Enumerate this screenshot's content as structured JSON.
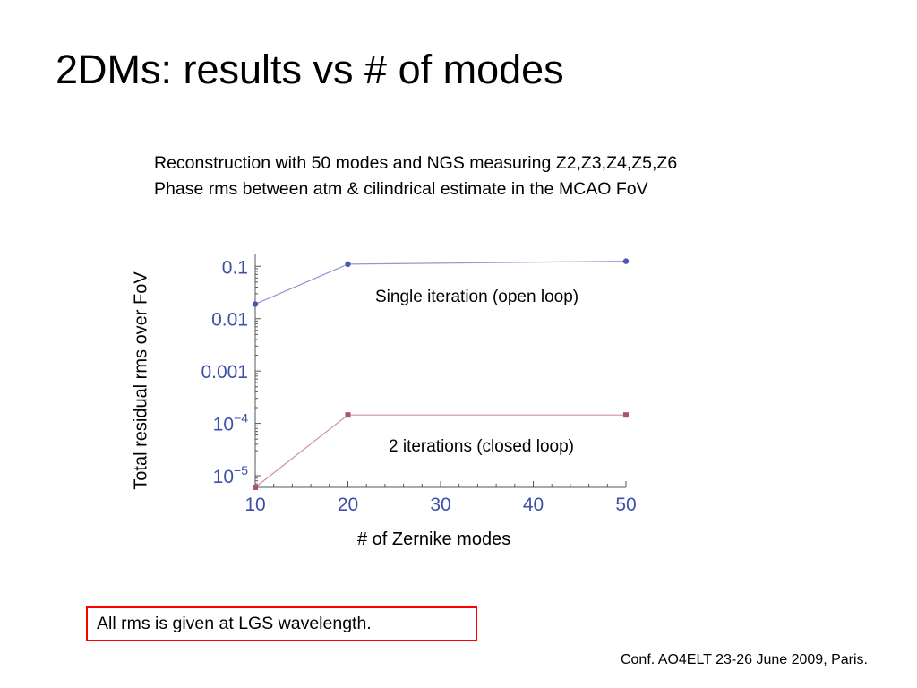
{
  "slide": {
    "title": "2DMs: results vs # of modes",
    "subtitle_line1": "Reconstruction with 50 modes and NGS measuring Z2,Z3,Z4,Z5,Z6",
    "subtitle_line2": "Phase rms between  atm  &  cilindrical estimate in the MCAO FoV",
    "note": "All rms is given at LGS wavelength.",
    "footer": "Conf. AO4ELT 23-26 June 2009, Paris."
  },
  "colors": {
    "axis_tick_text": "#3e4fa8",
    "series1": "#4a56b0",
    "series1_line": "#8f97d4",
    "series2": "#a8507e",
    "series2_line": "#cf8fa8",
    "note_border": "#ff0000"
  },
  "chart_data": {
    "type": "line",
    "xlabel": "# of Zernike modes",
    "ylabel": "Total residual rms over FoV",
    "yscale": "log",
    "xlim": [
      10,
      50
    ],
    "ylim": [
      6e-06,
      0.15
    ],
    "x_ticks": [
      10,
      20,
      30,
      40,
      50
    ],
    "x_tick_labels": [
      "10",
      "20",
      "30",
      "40",
      "50"
    ],
    "y_ticks": [
      {
        "value": 0.1,
        "base": "0.1",
        "exp": ""
      },
      {
        "value": 0.01,
        "base": "0.01",
        "exp": ""
      },
      {
        "value": 0.001,
        "base": "0.001",
        "exp": ""
      },
      {
        "value": 0.0001,
        "base": "10",
        "exp": "−4"
      },
      {
        "value": 1e-05,
        "base": "10",
        "exp": "−5"
      }
    ],
    "grid": false,
    "series": [
      {
        "name": "Single iteration (open loop)",
        "marker": "circle",
        "x": [
          10,
          20,
          50
        ],
        "y": [
          0.019,
          0.11,
          0.125
        ]
      },
      {
        "name": "2 iterations (closed loop)",
        "marker": "square",
        "x": [
          10,
          20,
          50
        ],
        "y": [
          6e-06,
          0.000145,
          0.000145
        ]
      }
    ]
  }
}
